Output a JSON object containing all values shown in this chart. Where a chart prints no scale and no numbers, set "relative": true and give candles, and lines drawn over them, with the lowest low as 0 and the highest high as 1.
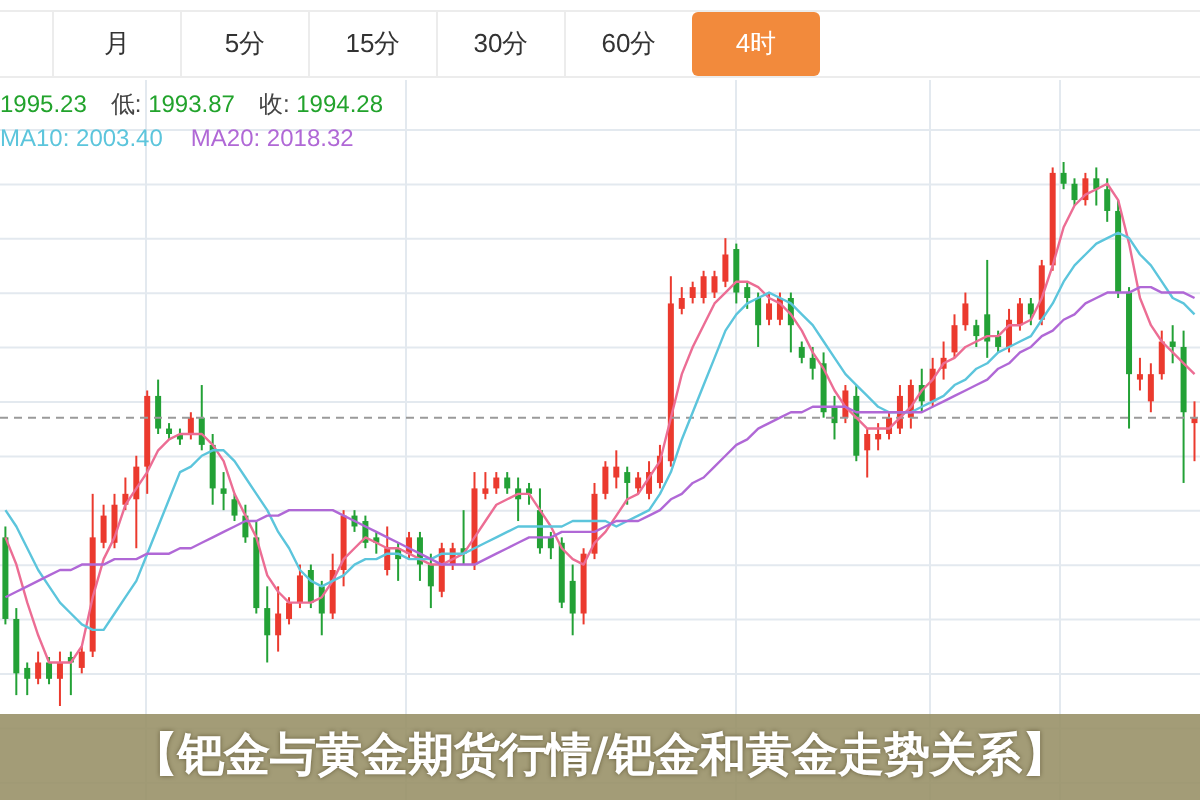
{
  "chart_data": {
    "type": "candlestick",
    "title": "【钯金与黄金期货行情/钯金和黄金走势关系】",
    "annotations": [
      "月",
      "5分",
      "15分",
      "30分",
      "60分",
      "4时",
      "1995.23",
      "低: 1993.87",
      "收: 1994.28"
    ],
    "relative": true,
    "grid": true,
    "legend": "top left",
    "categories": [
      null,
      null,
      null,
      null,
      null,
      null,
      null,
      null,
      null,
      null,
      null,
      null,
      null,
      null,
      null,
      null,
      null,
      null,
      null,
      null,
      null,
      null,
      null,
      null,
      null,
      null,
      null,
      null,
      null,
      null,
      null,
      null,
      null,
      null,
      null,
      null,
      null,
      null,
      null,
      null,
      null,
      null,
      null,
      null,
      null,
      null,
      null,
      null,
      null,
      null,
      null,
      null,
      null,
      null,
      null,
      null,
      null,
      null,
      null,
      null,
      null,
      null,
      null,
      null,
      null,
      null,
      null,
      null,
      null,
      null,
      null,
      null,
      null,
      null,
      null,
      null,
      null,
      null,
      null,
      null,
      null,
      null,
      null,
      null,
      null,
      null,
      null,
      null,
      null,
      null,
      null,
      null,
      null,
      null,
      null,
      null,
      null,
      null,
      null,
      null,
      null,
      null,
      null,
      null,
      null,
      null,
      null,
      null,
      null,
      null
    ],
    "ohlc": [
      [
        0.31,
        0.33,
        0.15,
        0.16
      ],
      [
        0.16,
        0.18,
        0.02,
        0.06
      ],
      [
        0.07,
        0.08,
        0.02,
        0.05
      ],
      [
        0.05,
        0.1,
        0.04,
        0.08
      ],
      [
        0.08,
        0.09,
        0.04,
        0.05
      ],
      [
        0.05,
        0.1,
        0,
        0.08
      ],
      [
        0.09,
        0.1,
        0.02,
        0.08
      ],
      [
        0.07,
        0.11,
        0.06,
        0.1
      ],
      [
        0.1,
        0.39,
        0.09,
        0.31
      ],
      [
        0.3,
        0.37,
        0.29,
        0.35
      ],
      [
        0.3,
        0.39,
        0.29,
        0.37
      ],
      [
        0.37,
        0.42,
        0.36,
        0.39
      ],
      [
        0.38,
        0.46,
        0.29,
        0.44
      ],
      [
        0.44,
        0.58,
        0.39,
        0.57
      ],
      [
        0.57,
        0.6,
        0.5,
        0.51
      ],
      [
        0.51,
        0.52,
        0.49,
        0.5
      ],
      [
        0.5,
        0.51,
        0.48,
        0.49
      ],
      [
        0.5,
        0.54,
        0.49,
        0.53
      ],
      [
        0.53,
        0.59,
        0.47,
        0.48
      ],
      [
        0.48,
        0.5,
        0.37,
        0.4
      ],
      [
        0.4,
        0.43,
        0.36,
        0.39
      ],
      [
        0.38,
        0.39,
        0.34,
        0.35
      ],
      [
        0.35,
        0.37,
        0.3,
        0.31
      ],
      [
        0.31,
        0.34,
        0.17,
        0.18
      ],
      [
        0.18,
        0.22,
        0.08,
        0.13
      ],
      [
        0.13,
        0.22,
        0.1,
        0.17
      ],
      [
        0.16,
        0.2,
        0.15,
        0.19
      ],
      [
        0.19,
        0.26,
        0.18,
        0.24
      ],
      [
        0.25,
        0.26,
        0.18,
        0.19
      ],
      [
        0.22,
        0.23,
        0.13,
        0.17
      ],
      [
        0.17,
        0.28,
        0.16,
        0.25
      ],
      [
        0.25,
        0.36,
        0.22,
        0.35
      ],
      [
        0.35,
        0.36,
        0.32,
        0.33
      ],
      [
        0.34,
        0.35,
        0.29,
        0.3
      ],
      [
        0.31,
        0.32,
        0.28,
        0.3
      ],
      [
        0.25,
        0.33,
        0.24,
        0.29
      ],
      [
        0.29,
        0.3,
        0.23,
        0.27
      ],
      [
        0.28,
        0.32,
        0.27,
        0.31
      ],
      [
        0.31,
        0.32,
        0.23,
        0.26
      ],
      [
        0.26,
        0.28,
        0.18,
        0.22
      ],
      [
        0.21,
        0.3,
        0.2,
        0.29
      ],
      [
        0.26,
        0.3,
        0.25,
        0.29
      ],
      [
        0.29,
        0.36,
        0.26,
        0.28
      ],
      [
        0.26,
        0.43,
        0.25,
        0.4
      ],
      [
        0.39,
        0.43,
        0.38,
        0.4
      ],
      [
        0.4,
        0.43,
        0.39,
        0.42
      ],
      [
        0.42,
        0.43,
        0.39,
        0.4
      ],
      [
        0.4,
        0.42,
        0.34,
        0.38
      ],
      [
        0.4,
        0.41,
        0.37,
        0.39
      ],
      [
        0.36,
        0.4,
        0.28,
        0.29
      ],
      [
        0.31,
        0.32,
        0.27,
        0.29
      ],
      [
        0.3,
        0.31,
        0.18,
        0.19
      ],
      [
        0.23,
        0.26,
        0.13,
        0.17
      ],
      [
        0.17,
        0.29,
        0.15,
        0.28
      ],
      [
        0.28,
        0.41,
        0.27,
        0.39
      ],
      [
        0.39,
        0.45,
        0.38,
        0.44
      ],
      [
        0.42,
        0.47,
        0.4,
        0.44
      ],
      [
        0.43,
        0.44,
        0.37,
        0.41
      ],
      [
        0.4,
        0.43,
        0.39,
        0.42
      ],
      [
        0.39,
        0.45,
        0.38,
        0.43
      ],
      [
        0.41,
        0.48,
        0.4,
        0.46
      ],
      [
        0.45,
        0.79,
        0.44,
        0.74
      ],
      [
        0.73,
        0.77,
        0.72,
        0.75
      ],
      [
        0.75,
        0.78,
        0.74,
        0.77
      ],
      [
        0.75,
        0.8,
        0.74,
        0.79
      ],
      [
        0.76,
        0.8,
        0.75,
        0.79
      ],
      [
        0.78,
        0.86,
        0.77,
        0.83
      ],
      [
        0.84,
        0.85,
        0.74,
        0.76
      ],
      [
        0.77,
        0.78,
        0.73,
        0.75
      ],
      [
        0.75,
        0.76,
        0.66,
        0.7
      ],
      [
        0.71,
        0.76,
        0.7,
        0.74
      ],
      [
        0.71,
        0.76,
        0.7,
        0.75
      ],
      [
        0.75,
        0.76,
        0.65,
        0.7
      ],
      [
        0.66,
        0.67,
        0.63,
        0.64
      ],
      [
        0.64,
        0.66,
        0.6,
        0.62
      ],
      [
        0.63,
        0.65,
        0.53,
        0.54
      ],
      [
        0.55,
        0.57,
        0.49,
        0.52
      ],
      [
        0.53,
        0.59,
        0.52,
        0.58
      ],
      [
        0.57,
        0.59,
        0.45,
        0.46
      ],
      [
        0.47,
        0.51,
        0.42,
        0.5
      ],
      [
        0.49,
        0.52,
        0.47,
        0.5
      ],
      [
        0.5,
        0.54,
        0.49,
        0.53
      ],
      [
        0.51,
        0.59,
        0.5,
        0.57
      ],
      [
        0.53,
        0.6,
        0.51,
        0.59
      ],
      [
        0.59,
        0.62,
        0.54,
        0.56
      ],
      [
        0.56,
        0.64,
        0.55,
        0.62
      ],
      [
        0.62,
        0.67,
        0.6,
        0.64
      ],
      [
        0.65,
        0.72,
        0.64,
        0.7
      ],
      [
        0.7,
        0.76,
        0.69,
        0.74
      ],
      [
        0.7,
        0.71,
        0.66,
        0.68
      ],
      [
        0.72,
        0.82,
        0.64,
        0.67
      ],
      [
        0.68,
        0.69,
        0.65,
        0.66
      ],
      [
        0.66,
        0.73,
        0.65,
        0.71
      ],
      [
        0.7,
        0.75,
        0.69,
        0.74
      ],
      [
        0.74,
        0.75,
        0.7,
        0.72
      ],
      [
        0.71,
        0.82,
        0.7,
        0.81
      ],
      [
        0.81,
        0.99,
        0.8,
        0.98
      ],
      [
        0.98,
        1,
        0.95,
        0.96
      ],
      [
        0.96,
        0.97,
        0.92,
        0.93
      ],
      [
        0.93,
        0.98,
        0.92,
        0.97
      ],
      [
        0.97,
        0.99,
        0.92,
        0.95
      ],
      [
        0.95,
        0.97,
        0.89,
        0.91
      ],
      [
        0.91,
        0.93,
        0.75,
        0.76
      ],
      [
        0.76,
        0.77,
        0.51,
        0.61
      ],
      [
        0.6,
        0.64,
        0.58,
        0.61
      ],
      [
        0.56,
        0.63,
        0.54,
        0.61
      ],
      [
        0.61,
        0.69,
        0.6,
        0.67
      ],
      [
        0.67,
        0.7,
        0.63,
        0.66
      ],
      [
        0.66,
        0.69,
        0.41,
        0.54
      ],
      [
        0.52,
        0.56,
        0.45,
        0.53
      ]
    ],
    "colors": [
      "#23a136",
      "#23a136",
      "#23a136",
      "#eb3a2e",
      "#23a136",
      "#eb3a2e",
      "#23a136",
      "#eb3a2e",
      "#eb3a2e",
      "#eb3a2e",
      "#eb3a2e",
      "#eb3a2e",
      "#eb3a2e",
      "#eb3a2e",
      "#23a136",
      "#23a136",
      "#23a136",
      "#eb3a2e",
      "#23a136",
      "#23a136",
      "#23a136",
      "#23a136",
      "#23a136",
      "#23a136",
      "#23a136",
      "#eb3a2e",
      "#eb3a2e",
      "#eb3a2e",
      "#23a136",
      "#23a136",
      "#eb3a2e",
      "#eb3a2e",
      "#23a136",
      "#23a136",
      "#23a136",
      "#eb3a2e",
      "#23a136",
      "#eb3a2e",
      "#23a136",
      "#23a136",
      "#eb3a2e",
      "#eb3a2e",
      "#23a136",
      "#eb3a2e",
      "#eb3a2e",
      "#eb3a2e",
      "#23a136",
      "#23a136",
      "#23a136",
      "#23a136",
      "#23a136",
      "#23a136",
      "#23a136",
      "#eb3a2e",
      "#eb3a2e",
      "#eb3a2e",
      "#eb3a2e",
      "#23a136",
      "#eb3a2e",
      "#eb3a2e",
      "#eb3a2e",
      "#eb3a2e",
      "#eb3a2e",
      "#eb3a2e",
      "#eb3a2e",
      "#eb3a2e",
      "#eb3a2e",
      "#23a136",
      "#23a136",
      "#23a136",
      "#eb3a2e",
      "#eb3a2e",
      "#23a136",
      "#23a136",
      "#23a136",
      "#23a136",
      "#23a136",
      "#eb3a2e",
      "#23a136",
      "#eb3a2e",
      "#eb3a2e",
      "#eb3a2e",
      "#eb3a2e",
      "#eb3a2e",
      "#23a136",
      "#eb3a2e",
      "#eb3a2e",
      "#eb3a2e",
      "#eb3a2e",
      "#23a136",
      "#23a136",
      "#23a136",
      "#eb3a2e",
      "#eb3a2e",
      "#23a136",
      "#eb3a2e",
      "#eb3a2e",
      "#23a136",
      "#23a136",
      "#eb3a2e",
      "#23a136",
      "#23a136",
      "#23a136",
      "#23a136",
      "#eb3a2e",
      "#eb3a2e",
      "#eb3a2e",
      "#23a136",
      "#23a136",
      "#eb3a2e"
    ],
    "series": [
      {
        "type": "line",
        "color": "#ec6d94",
        "values": [
          0.31,
          0.26,
          0.19,
          0.13,
          0.08,
          0.08,
          0.08,
          0.11,
          0.2,
          0.27,
          0.31,
          0.37,
          0.4,
          0.43,
          0.47,
          0.49,
          0.5,
          0.5,
          0.5,
          0.48,
          0.45,
          0.39,
          0.35,
          0.31,
          0.24,
          0.21,
          0.19,
          0.19,
          0.19,
          0.2,
          0.23,
          0.27,
          0.29,
          0.31,
          0.3,
          0.29,
          0.29,
          0.28,
          0.27,
          0.26,
          0.26,
          0.27,
          0.28,
          0.31,
          0.34,
          0.37,
          0.38,
          0.39,
          0.39,
          0.36,
          0.33,
          0.29,
          0.27,
          0.26,
          0.3,
          0.32,
          0.35,
          0.38,
          0.39,
          0.42,
          0.45,
          0.53,
          0.61,
          0.66,
          0.7,
          0.74,
          0.76,
          0.78,
          0.78,
          0.77,
          0.75,
          0.74,
          0.72,
          0.69,
          0.65,
          0.62,
          0.58,
          0.55,
          0.53,
          0.51,
          0.51,
          0.51,
          0.53,
          0.55,
          0.58,
          0.6,
          0.63,
          0.64,
          0.66,
          0.67,
          0.68,
          0.68,
          0.7,
          0.7,
          0.71,
          0.75,
          0.81,
          0.88,
          0.92,
          0.94,
          0.95,
          0.96,
          0.93,
          0.85,
          0.75,
          0.7,
          0.67,
          0.65,
          0.63,
          0.61
        ]
      },
      {
        "type": "line",
        "name": "MA10: 2003.40",
        "color": "#5cc5dc",
        "values": [
          0.36,
          0.33,
          0.29,
          0.25,
          0.22,
          0.19,
          0.17,
          0.15,
          0.14,
          0.14,
          0.17,
          0.2,
          0.23,
          0.28,
          0.33,
          0.38,
          0.43,
          0.44,
          0.46,
          0.47,
          0.47,
          0.45,
          0.42,
          0.39,
          0.36,
          0.32,
          0.29,
          0.25,
          0.23,
          0.22,
          0.23,
          0.24,
          0.26,
          0.27,
          0.27,
          0.28,
          0.28,
          0.27,
          0.27,
          0.27,
          0.28,
          0.28,
          0.28,
          0.29,
          0.3,
          0.31,
          0.32,
          0.33,
          0.33,
          0.33,
          0.33,
          0.33,
          0.34,
          0.34,
          0.34,
          0.34,
          0.33,
          0.34,
          0.35,
          0.36,
          0.39,
          0.43,
          0.49,
          0.54,
          0.59,
          0.64,
          0.69,
          0.72,
          0.74,
          0.75,
          0.76,
          0.75,
          0.74,
          0.72,
          0.7,
          0.67,
          0.64,
          0.61,
          0.59,
          0.57,
          0.55,
          0.54,
          0.54,
          0.54,
          0.55,
          0.56,
          0.57,
          0.59,
          0.6,
          0.62,
          0.63,
          0.65,
          0.66,
          0.67,
          0.68,
          0.71,
          0.74,
          0.78,
          0.81,
          0.83,
          0.85,
          0.86,
          0.87,
          0.86,
          0.83,
          0.81,
          0.78,
          0.75,
          0.74,
          0.72
        ]
      },
      {
        "type": "line",
        "name": "MA20: 2018.32",
        "color": "#b068d6",
        "values": [
          0.2,
          0.21,
          0.22,
          0.23,
          0.24,
          0.25,
          0.25,
          0.26,
          0.26,
          0.26,
          0.27,
          0.27,
          0.27,
          0.28,
          0.28,
          0.28,
          0.29,
          0.29,
          0.3,
          0.31,
          0.32,
          0.33,
          0.34,
          0.34,
          0.35,
          0.35,
          0.36,
          0.36,
          0.36,
          0.36,
          0.36,
          0.35,
          0.34,
          0.33,
          0.32,
          0.31,
          0.3,
          0.29,
          0.28,
          0.27,
          0.26,
          0.26,
          0.26,
          0.26,
          0.27,
          0.28,
          0.29,
          0.3,
          0.31,
          0.31,
          0.31,
          0.32,
          0.32,
          0.32,
          0.32,
          0.33,
          0.34,
          0.34,
          0.34,
          0.35,
          0.36,
          0.38,
          0.39,
          0.41,
          0.42,
          0.44,
          0.46,
          0.48,
          0.49,
          0.51,
          0.52,
          0.53,
          0.54,
          0.54,
          0.55,
          0.55,
          0.55,
          0.55,
          0.54,
          0.54,
          0.54,
          0.54,
          0.54,
          0.54,
          0.54,
          0.55,
          0.56,
          0.57,
          0.58,
          0.59,
          0.6,
          0.62,
          0.63,
          0.65,
          0.66,
          0.68,
          0.69,
          0.71,
          0.72,
          0.74,
          0.75,
          0.76,
          0.76,
          0.76,
          0.77,
          0.77,
          0.76,
          0.76,
          0.76,
          0.75
        ]
      }
    ],
    "ref_lines": [
      {
        "axis": "y",
        "value": 0.53,
        "color": "#9a9a9a",
        "line_style": "dashed"
      }
    ]
  }
}
